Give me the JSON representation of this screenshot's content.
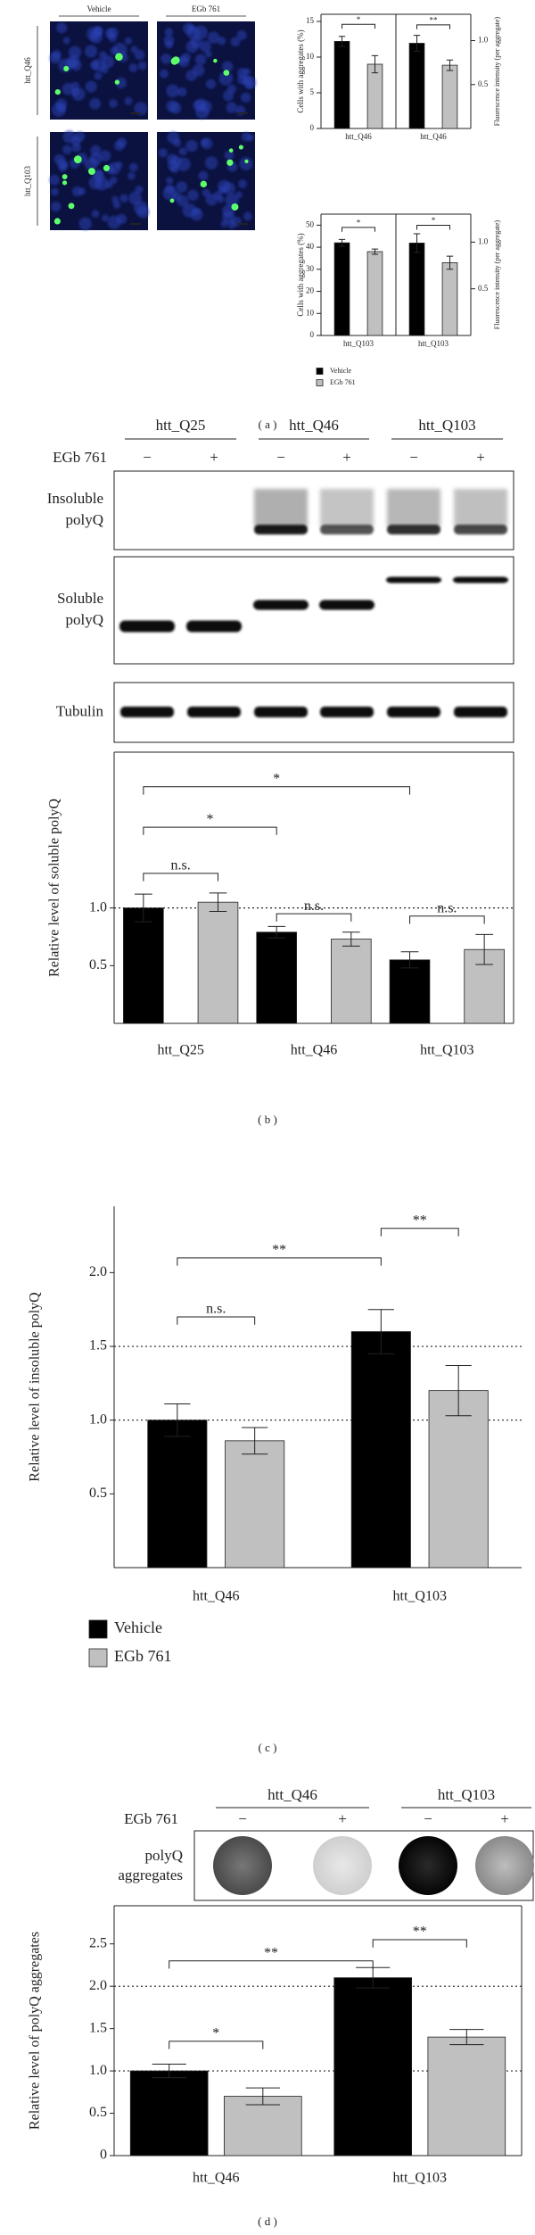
{
  "panel_labels": [
    "( a )",
    "( b )",
    "( c )",
    "( d )"
  ],
  "microscopy": {
    "columns": [
      "Vehicle",
      "EGb 761"
    ],
    "rows": [
      "htt_Q46",
      "htt_Q103"
    ]
  },
  "blots": {
    "groups": [
      "htt_Q25",
      "htt_Q46",
      "htt_Q103"
    ],
    "treatment_label": "EGb 761",
    "treatment_marks": [
      "−",
      "+",
      "−",
      "+",
      "−",
      "+"
    ],
    "rows": [
      [
        "Insoluble",
        "polyQ"
      ],
      [
        "Soluble",
        "polyQ"
      ],
      [
        "Tubulin"
      ]
    ]
  },
  "dot_blot": {
    "groups": [
      "htt_Q46",
      "htt_Q103"
    ],
    "treatment_label": "EGb 761",
    "treatment_marks": [
      "−",
      "+",
      "−",
      "+"
    ],
    "row_label": [
      "polyQ",
      "aggregates"
    ]
  },
  "chart_data": [
    {
      "type": "bar",
      "y_label": "Cells with aggregates (%)",
      "y2_label": "Fluorescence intensity (per aggregate)",
      "categories": [
        "htt_Q46",
        "htt_Q46"
      ],
      "series": [
        {
          "name": "Vehicle",
          "color": "#000000",
          "values": [
            12.2,
            null
          ],
          "errors": [
            0.7,
            null
          ]
        },
        {
          "name": "EGb 761",
          "color": "#c0c0c0",
          "values": [
            9.0,
            null
          ],
          "errors": [
            1.2,
            null
          ]
        },
        {
          "name": "Vehicle",
          "color": "#000000",
          "axis": "y2",
          "values": [
            null,
            0.97
          ],
          "errors": [
            null,
            0.09
          ]
        },
        {
          "name": "EGb 761",
          "color": "#c0c0c0",
          "axis": "y2",
          "values": [
            null,
            0.72
          ],
          "errors": [
            null,
            0.06
          ]
        }
      ],
      "ylim": [
        0,
        16
      ],
      "yticks": [
        0,
        5,
        10,
        15
      ],
      "y2lim": [
        0,
        1.3
      ],
      "y2ticks": [
        0.5,
        {
          "value": 1,
          "label": "1.0"
        }
      ],
      "annotations": [
        {
          "text": "*"
        },
        {
          "text": "**"
        }
      ],
      "legend": false
    },
    {
      "type": "bar",
      "y_label": "Cells with aggregates (%)",
      "y2_label": "Fluorescence intensity (per aggregate)",
      "categories": [
        "htt_Q103",
        "htt_Q103"
      ],
      "series": [
        {
          "name": "Vehicle",
          "color": "#000000",
          "values": [
            42,
            null
          ],
          "errors": [
            1.5,
            null
          ]
        },
        {
          "name": "EGb 761",
          "color": "#c0c0c0",
          "values": [
            38,
            null
          ],
          "errors": [
            1.2,
            null
          ]
        },
        {
          "name": "Vehicle",
          "color": "#000000",
          "axis": "y2",
          "values": [
            null,
            0.99
          ],
          "errors": [
            null,
            0.1
          ]
        },
        {
          "name": "EGb 761",
          "color": "#c0c0c0",
          "axis": "y2",
          "values": [
            null,
            0.78
          ],
          "errors": [
            null,
            0.07
          ]
        }
      ],
      "ylim": [
        0,
        55
      ],
      "yticks": [
        0,
        10,
        20,
        30,
        40,
        50
      ],
      "y2lim": [
        0,
        1.3
      ],
      "y2ticks": [
        0.5,
        {
          "value": 1,
          "label": "1.0"
        }
      ],
      "annotations": [
        {
          "text": "*"
        },
        {
          "text": "*"
        }
      ],
      "legend": true
    },
    {
      "type": "bar",
      "y_label": "Relative level of soluble polyQ",
      "categories": [
        "htt_Q25",
        "htt_Q46",
        "htt_Q103"
      ],
      "series": [
        {
          "name": "Vehicle",
          "color": "#000000",
          "values": [
            1.0,
            0.79,
            0.55
          ],
          "errors": [
            0.12,
            0.05,
            0.07
          ]
        },
        {
          "name": "EGb 761",
          "color": "#c0c0c0",
          "values": [
            1.05,
            0.73,
            0.64
          ],
          "errors": [
            0.08,
            0.06,
            0.13
          ]
        }
      ],
      "ylim": [
        0,
        2.35
      ],
      "yticks": [
        0.5,
        {
          "value": 1,
          "label": "1.0"
        }
      ],
      "reference_lines": [
        1
      ],
      "annotations": [
        {
          "text": "n.s."
        },
        {
          "text": "*"
        },
        {
          "text": "*"
        },
        {
          "text": "n.s."
        },
        {
          "text": "n.s."
        }
      ],
      "legend": false
    },
    {
      "type": "bar",
      "y_label": "Relative level of insoluble polyQ",
      "categories": [
        "htt_Q46",
        "htt_Q103"
      ],
      "series": [
        {
          "name": "Vehicle",
          "color": "#000000",
          "values": [
            1.0,
            1.6
          ],
          "errors": [
            0.11,
            0.15
          ]
        },
        {
          "name": "EGb 761",
          "color": "#c0c0c0",
          "values": [
            0.86,
            1.2
          ],
          "errors": [
            0.09,
            0.17
          ]
        }
      ],
      "ylim": [
        0,
        2.45
      ],
      "yticks": [
        0.5,
        {
          "value": 1,
          "label": "1.0"
        },
        1.5,
        {
          "value": 2,
          "label": "2.0"
        }
      ],
      "reference_lines": [
        1,
        1.5
      ],
      "annotations": [
        {
          "text": "n.s."
        },
        {
          "text": "**"
        },
        {
          "text": "**"
        }
      ],
      "legend": true
    },
    {
      "type": "bar",
      "y_label": "Relative level of polyQ aggregates",
      "categories": [
        "htt_Q46",
        "htt_Q103"
      ],
      "series": [
        {
          "name": "Vehicle",
          "color": "#000000",
          "values": [
            1.0,
            2.1
          ],
          "errors": [
            0.08,
            0.12
          ]
        },
        {
          "name": "EGb 761",
          "color": "#c0c0c0",
          "values": [
            0.7,
            1.4
          ],
          "errors": [
            0.1,
            0.09
          ]
        }
      ],
      "ylim": [
        0,
        2.95
      ],
      "yticks": [
        0,
        0.5,
        {
          "value": 1,
          "label": "1.0"
        },
        1.5,
        {
          "value": 2,
          "label": "2.0"
        },
        2.5
      ],
      "reference_lines": [
        1,
        2
      ],
      "annotations": [
        {
          "text": "*"
        },
        {
          "text": "**"
        },
        {
          "text": "**"
        }
      ],
      "legend": false
    }
  ]
}
